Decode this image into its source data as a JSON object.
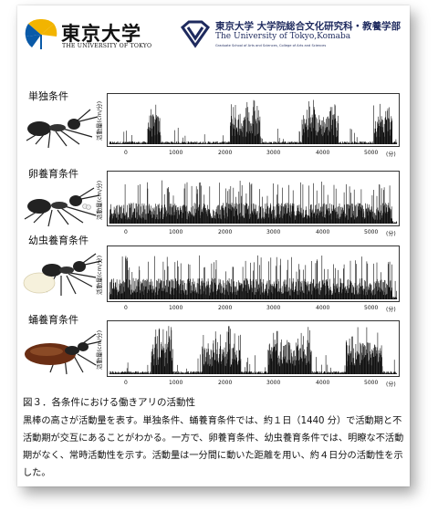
{
  "header": {
    "utokyo_name_ja": "東京大学",
    "utokyo_name_en": "THE UNIVERSITY OF TOKYO",
    "komaba_line1": "東京大学 大学院総合文化研究科・教養学部",
    "komaba_line2": "The University of Tokyo,Komaba",
    "komaba_line3": "Graduate School of Arts and Sciences, College of Arts and Sciences"
  },
  "colors": {
    "gold": "#f2b400",
    "navy": "#1e2a5e",
    "trace": "#111111"
  },
  "panels": [
    {
      "label": "単独条件",
      "ylabel": "活動量(cm/分)",
      "unit": "(分)",
      "ant": "worker-ant"
    },
    {
      "label": "卵養育条件",
      "ylabel": "活動量(cm/分)",
      "unit": "(分)",
      "ant": "ant-with-eggs"
    },
    {
      "label": "幼虫養育条件",
      "ylabel": "活動量(cm/分)",
      "unit": "(分)",
      "ant": "ant-with-larva"
    },
    {
      "label": "蛹養育条件",
      "ylabel": "活動量(cm/分)",
      "unit": "(分)",
      "ant": "ant-with-pupa"
    }
  ],
  "xticks": [
    "0",
    "1000",
    "2000",
    "3000",
    "4000",
    "5000"
  ],
  "caption": {
    "title": "図３．各条件における働きアリの活動性",
    "body": "黒棒の高さが活動量を表す。単独条件、蛹養育条件では、約１日（1440 分）で活動期と不活動期が交互にあることがわかる。一方で、卵養育条件、幼虫養育条件では、明瞭な不活動期がなく、常時活動性を示す。活動量は一分間に動いた距離を用い、約４日分の活動性を示した。"
  },
  "chart_data": [
    {
      "type": "bar",
      "title": "単独条件",
      "xlabel": "(分)",
      "ylabel": "活動量(cm/分)",
      "xlim": [
        0,
        5900
      ],
      "x_ticks": [
        0,
        1000,
        2000,
        3000,
        4000,
        5000
      ],
      "active_periods": [
        [
          780,
          1050
        ],
        [
          2480,
          3100
        ],
        [
          3950,
          4700
        ],
        [
          5420,
          5800
        ]
      ],
      "pattern": "alternating active / inactive phases (~1440 min cycle)"
    },
    {
      "type": "bar",
      "title": "卵養育条件",
      "xlabel": "(分)",
      "ylabel": "活動量(cm/分)",
      "xlim": [
        0,
        5900
      ],
      "x_ticks": [
        0,
        1000,
        2000,
        3000,
        4000,
        5000
      ],
      "active_periods": [
        [
          0,
          5800
        ]
      ],
      "pattern": "continuous activity, no clear inactive phase"
    },
    {
      "type": "bar",
      "title": "幼虫養育条件",
      "xlabel": "(分)",
      "ylabel": "活動量(cm/分)",
      "xlim": [
        0,
        5900
      ],
      "x_ticks": [
        0,
        1000,
        2000,
        3000,
        4000,
        5000
      ],
      "active_periods": [
        [
          0,
          5800
        ]
      ],
      "pattern": "continuous activity, no clear inactive phase"
    },
    {
      "type": "bar",
      "title": "蛹養育条件",
      "xlabel": "(分)",
      "ylabel": "活動量(cm/分)",
      "xlim": [
        0,
        5900
      ],
      "x_ticks": [
        0,
        1000,
        2000,
        3000,
        4000,
        5000
      ],
      "active_periods": [
        [
          850,
          1300
        ],
        [
          1900,
          2700
        ],
        [
          3250,
          4150
        ],
        [
          4850,
          5600
        ]
      ],
      "pattern": "alternating active / inactive phases (~1440 min cycle)"
    }
  ]
}
